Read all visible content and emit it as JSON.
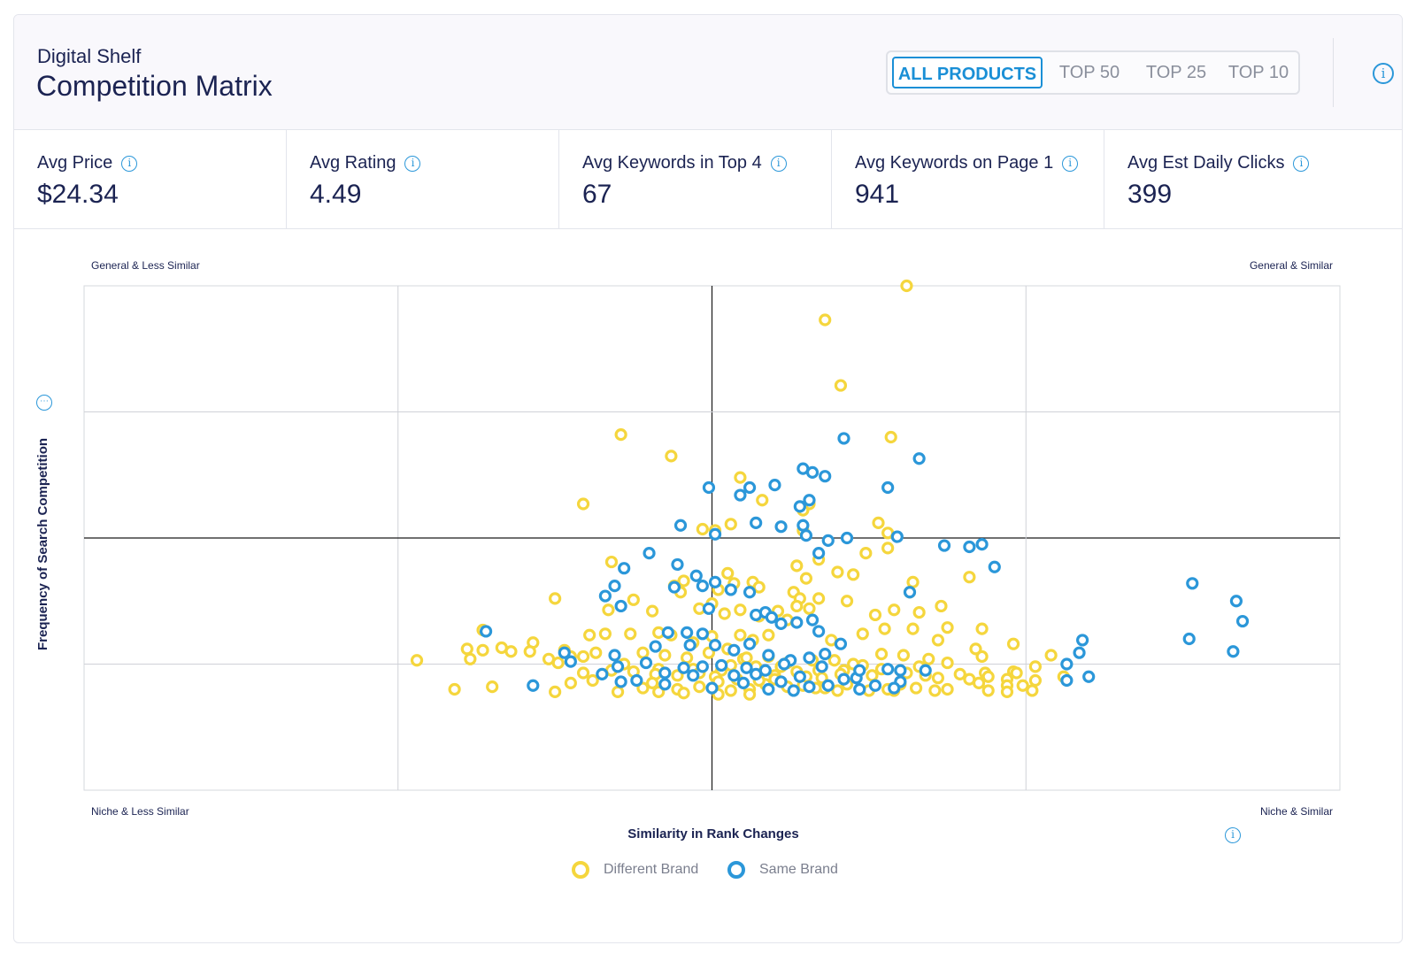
{
  "header": {
    "subtitle": "Digital Shelf",
    "title": "Competition Matrix",
    "tabs": [
      {
        "label": "ALL PRODUCTS",
        "active": true
      },
      {
        "label": "TOP 50",
        "active": false
      },
      {
        "label": "TOP 25",
        "active": false
      },
      {
        "label": "TOP 10",
        "active": false
      }
    ]
  },
  "stats": [
    {
      "label": "Avg Price",
      "value": "$24.34"
    },
    {
      "label": "Avg Rating",
      "value": "4.49"
    },
    {
      "label": "Avg Keywords in Top 4",
      "value": "67"
    },
    {
      "label": "Avg Keywords on Page 1",
      "value": "941"
    },
    {
      "label": "Avg Est Daily Clicks",
      "value": "399"
    }
  ],
  "corners": {
    "top_left": "General & Less Similar",
    "top_right": "General & Similar",
    "bottom_left": "Niche & Less Similar",
    "bottom_right": "Niche & Similar"
  },
  "colors": {
    "different_brand": "#f5d63d",
    "same_brand": "#2b97d9",
    "accent": "#1a8fd6"
  },
  "chart_data": {
    "type": "scatter",
    "xlabel": "Similarity in Rank Changes",
    "ylabel": "Frequency of Search Competition",
    "xlim": [
      0,
      4
    ],
    "ylim": [
      0,
      4
    ],
    "grid": true,
    "legend_position": "bottom-center",
    "series": [
      {
        "name": "Different Brand",
        "color": "#f5d63d",
        "points": [
          [
            2.62,
            4.0
          ],
          [
            2.36,
            3.73
          ],
          [
            2.41,
            3.21
          ],
          [
            1.71,
            2.82
          ],
          [
            2.57,
            2.8
          ],
          [
            1.87,
            2.65
          ],
          [
            2.09,
            2.48
          ],
          [
            1.59,
            2.27
          ],
          [
            2.16,
            2.3
          ],
          [
            2.31,
            2.27
          ],
          [
            2.29,
            2.22
          ],
          [
            2.06,
            2.11
          ],
          [
            1.97,
            2.07
          ],
          [
            2.01,
            2.06
          ],
          [
            2.53,
            2.12
          ],
          [
            2.56,
            2.04
          ],
          [
            2.29,
            2.06
          ],
          [
            1.68,
            1.81
          ],
          [
            2.27,
            1.78
          ],
          [
            2.56,
            1.92
          ],
          [
            2.64,
            1.65
          ],
          [
            2.13,
            1.65
          ],
          [
            2.3,
            1.68
          ],
          [
            2.05,
            1.72
          ],
          [
            1.91,
            1.66
          ],
          [
            2.4,
            1.73
          ],
          [
            2.45,
            1.71
          ],
          [
            2.34,
            1.83
          ],
          [
            2.49,
            1.88
          ],
          [
            2.07,
            1.64
          ],
          [
            2.02,
            1.59
          ],
          [
            1.88,
            1.62
          ],
          [
            1.9,
            1.57
          ],
          [
            2.15,
            1.61
          ],
          [
            2.26,
            1.57
          ],
          [
            2.28,
            1.52
          ],
          [
            2.63,
            1.57
          ],
          [
            2.82,
            1.69
          ],
          [
            1.5,
            1.52
          ],
          [
            1.67,
            1.43
          ],
          [
            1.75,
            1.51
          ],
          [
            1.81,
            1.42
          ],
          [
            1.96,
            1.44
          ],
          [
            2.0,
            1.48
          ],
          [
            2.04,
            1.4
          ],
          [
            2.09,
            1.43
          ],
          [
            2.15,
            1.38
          ],
          [
            2.21,
            1.42
          ],
          [
            2.27,
            1.46
          ],
          [
            2.31,
            1.44
          ],
          [
            2.34,
            1.52
          ],
          [
            2.43,
            1.5
          ],
          [
            2.52,
            1.39
          ],
          [
            2.58,
            1.43
          ],
          [
            2.66,
            1.41
          ],
          [
            2.73,
            1.46
          ],
          [
            2.86,
            1.28
          ],
          [
            1.27,
            1.27
          ],
          [
            1.43,
            1.17
          ],
          [
            1.53,
            1.11
          ],
          [
            1.61,
            1.23
          ],
          [
            1.66,
            1.24
          ],
          [
            1.74,
            1.24
          ],
          [
            1.83,
            1.25
          ],
          [
            1.87,
            1.23
          ],
          [
            1.94,
            1.17
          ],
          [
            2.0,
            1.22
          ],
          [
            2.09,
            1.23
          ],
          [
            2.13,
            1.19
          ],
          [
            2.18,
            1.23
          ],
          [
            2.24,
            1.35
          ],
          [
            2.38,
            1.19
          ],
          [
            2.48,
            1.24
          ],
          [
            2.55,
            1.28
          ],
          [
            2.64,
            1.28
          ],
          [
            2.72,
            1.19
          ],
          [
            2.75,
            1.29
          ],
          [
            2.96,
            1.16
          ],
          [
            1.27,
            1.11
          ],
          [
            1.22,
            1.12
          ],
          [
            1.42,
            1.1
          ],
          [
            1.63,
            1.09
          ],
          [
            1.78,
            1.09
          ],
          [
            1.85,
            1.07
          ],
          [
            1.92,
            1.05
          ],
          [
            1.99,
            1.09
          ],
          [
            2.05,
            1.12
          ],
          [
            2.1,
            1.04
          ],
          [
            2.18,
            1.06
          ],
          [
            2.24,
            1.01
          ],
          [
            2.32,
            1.03
          ],
          [
            2.39,
            1.03
          ],
          [
            2.45,
            1.0
          ],
          [
            2.54,
            1.08
          ],
          [
            2.61,
            1.07
          ],
          [
            2.69,
            1.04
          ],
          [
            2.75,
            1.01
          ],
          [
            2.84,
            1.12
          ],
          [
            2.86,
            1.06
          ],
          [
            1.23,
            1.04
          ],
          [
            1.36,
            1.1
          ],
          [
            1.48,
            1.04
          ],
          [
            1.55,
            1.06
          ],
          [
            1.59,
            1.06
          ],
          [
            1.72,
            1.0
          ],
          [
            1.83,
            0.96
          ],
          [
            1.94,
            0.96
          ],
          [
            2.06,
            0.99
          ],
          [
            2.11,
            1.05
          ],
          [
            2.22,
            0.98
          ],
          [
            2.27,
            0.94
          ],
          [
            2.34,
            0.95
          ],
          [
            2.48,
            0.99
          ],
          [
            2.6,
            0.95
          ],
          [
            2.68,
            0.91
          ],
          [
            2.87,
            0.93
          ],
          [
            2.94,
            0.88
          ],
          [
            3.08,
            1.07
          ],
          [
            1.51,
            1.01
          ],
          [
            1.59,
            0.93
          ],
          [
            1.75,
            0.94
          ],
          [
            1.89,
            0.91
          ],
          [
            1.96,
            0.93
          ],
          [
            2.03,
            0.95
          ],
          [
            2.14,
            0.98
          ],
          [
            2.2,
            0.91
          ],
          [
            2.35,
            0.89
          ],
          [
            2.42,
            0.95
          ],
          [
            2.54,
            0.96
          ],
          [
            2.62,
            0.93
          ],
          [
            2.72,
            0.89
          ],
          [
            2.79,
            0.92
          ],
          [
            2.88,
            0.9
          ],
          [
            2.96,
            0.94
          ],
          [
            3.03,
            0.98
          ],
          [
            3.12,
            0.9
          ],
          [
            1.82,
            0.92
          ],
          [
            1.68,
            0.95
          ],
          [
            2.01,
            0.9
          ],
          [
            2.08,
            0.88
          ],
          [
            2.2,
            0.88
          ],
          [
            2.3,
            0.9
          ],
          [
            2.41,
            0.92
          ],
          [
            2.51,
            0.91
          ],
          [
            2.66,
            0.98
          ],
          [
            2.82,
            0.88
          ],
          [
            2.97,
            0.93
          ],
          [
            1.33,
            1.13
          ],
          [
            1.06,
            1.03
          ],
          [
            1.3,
            0.82
          ],
          [
            1.18,
            0.8
          ],
          [
            1.62,
            0.87
          ],
          [
            1.78,
            0.81
          ],
          [
            1.81,
            0.85
          ],
          [
            1.89,
            0.8
          ],
          [
            1.96,
            0.82
          ],
          [
            2.02,
            0.86
          ],
          [
            2.06,
            0.79
          ],
          [
            2.12,
            0.8
          ],
          [
            2.17,
            0.84
          ],
          [
            2.24,
            0.82
          ],
          [
            2.29,
            0.83
          ],
          [
            2.36,
            0.81
          ],
          [
            2.43,
            0.84
          ],
          [
            2.5,
            0.79
          ],
          [
            2.58,
            0.79
          ],
          [
            2.65,
            0.81
          ],
          [
            2.71,
            0.79
          ],
          [
            2.85,
            0.85
          ],
          [
            2.94,
            0.83
          ],
          [
            2.94,
            0.78
          ],
          [
            2.99,
            0.83
          ],
          [
            3.02,
            0.79
          ],
          [
            1.7,
            0.78
          ],
          [
            1.83,
            0.78
          ],
          [
            1.91,
            0.77
          ],
          [
            2.02,
            0.76
          ],
          [
            2.12,
            0.76
          ],
          [
            2.4,
            0.79
          ],
          [
            2.75,
            0.8
          ],
          [
            3.03,
            0.87
          ],
          [
            1.55,
            0.85
          ],
          [
            2.33,
            0.81
          ],
          [
            2.56,
            0.8
          ],
          [
            1.5,
            0.78
          ],
          [
            2.15,
            0.87
          ],
          [
            2.88,
            0.79
          ],
          [
            2.6,
            0.84
          ]
        ]
      },
      {
        "name": "Same Brand",
        "color": "#2b97d9",
        "points": [
          [
            2.42,
            2.79
          ],
          [
            2.66,
            2.63
          ],
          [
            2.29,
            2.55
          ],
          [
            2.32,
            2.52
          ],
          [
            2.36,
            2.49
          ],
          [
            1.99,
            2.4
          ],
          [
            2.12,
            2.4
          ],
          [
            2.2,
            2.42
          ],
          [
            2.31,
            2.3
          ],
          [
            2.56,
            2.4
          ],
          [
            2.28,
            2.25
          ],
          [
            1.9,
            2.1
          ],
          [
            2.01,
            2.03
          ],
          [
            2.14,
            2.12
          ],
          [
            2.22,
            2.09
          ],
          [
            2.29,
            2.1
          ],
          [
            2.3,
            2.02
          ],
          [
            2.37,
            1.98
          ],
          [
            2.43,
            2.0
          ],
          [
            2.74,
            1.94
          ],
          [
            2.82,
            1.93
          ],
          [
            2.86,
            1.95
          ],
          [
            1.8,
            1.88
          ],
          [
            1.89,
            1.79
          ],
          [
            1.95,
            1.7
          ],
          [
            1.72,
            1.76
          ],
          [
            1.88,
            1.61
          ],
          [
            1.97,
            1.62
          ],
          [
            2.01,
            1.65
          ],
          [
            2.06,
            1.59
          ],
          [
            2.12,
            1.57
          ],
          [
            1.66,
            1.54
          ],
          [
            1.71,
            1.46
          ],
          [
            1.99,
            1.44
          ],
          [
            2.14,
            1.39
          ],
          [
            2.32,
            1.35
          ],
          [
            2.63,
            1.57
          ],
          [
            2.34,
            1.26
          ],
          [
            2.22,
            1.32
          ],
          [
            2.17,
            1.41
          ],
          [
            1.86,
            1.25
          ],
          [
            1.92,
            1.25
          ],
          [
            1.97,
            1.24
          ],
          [
            2.19,
            1.37
          ],
          [
            2.27,
            1.33
          ],
          [
            1.28,
            1.26
          ],
          [
            1.53,
            1.09
          ],
          [
            1.69,
            1.07
          ],
          [
            1.82,
            1.14
          ],
          [
            1.93,
            1.15
          ],
          [
            2.01,
            1.15
          ],
          [
            2.07,
            1.11
          ],
          [
            2.12,
            1.16
          ],
          [
            2.18,
            1.07
          ],
          [
            2.25,
            1.03
          ],
          [
            2.31,
            1.05
          ],
          [
            2.36,
            1.08
          ],
          [
            2.41,
            1.16
          ],
          [
            2.46,
            0.89
          ],
          [
            2.56,
            0.96
          ],
          [
            2.6,
            0.86
          ],
          [
            3.18,
            1.19
          ],
          [
            3.13,
            1.0
          ],
          [
            3.17,
            1.09
          ],
          [
            1.55,
            1.02
          ],
          [
            1.7,
            0.98
          ],
          [
            1.79,
            1.01
          ],
          [
            1.85,
            0.93
          ],
          [
            1.91,
            0.97
          ],
          [
            1.97,
            0.98
          ],
          [
            2.03,
            0.99
          ],
          [
            2.11,
            0.97
          ],
          [
            2.17,
            0.95
          ],
          [
            2.23,
            1.0
          ],
          [
            2.35,
            0.98
          ],
          [
            2.47,
            0.95
          ],
          [
            2.6,
            0.95
          ],
          [
            2.68,
            0.95
          ],
          [
            3.2,
            0.9
          ],
          [
            1.71,
            0.86
          ],
          [
            1.76,
            0.87
          ],
          [
            1.94,
            0.91
          ],
          [
            2.07,
            0.91
          ],
          [
            2.14,
            0.92
          ],
          [
            2.28,
            0.9
          ],
          [
            2.42,
            0.88
          ],
          [
            1.43,
            0.83
          ],
          [
            2.22,
            0.86
          ],
          [
            2.31,
            0.82
          ],
          [
            1.65,
            0.92
          ],
          [
            1.85,
            0.84
          ],
          [
            2.0,
            0.81
          ],
          [
            2.1,
            0.85
          ],
          [
            2.18,
            0.8
          ],
          [
            2.26,
            0.79
          ],
          [
            2.37,
            0.83
          ],
          [
            2.47,
            0.8
          ],
          [
            2.52,
            0.83
          ],
          [
            2.58,
            0.81
          ],
          [
            3.13,
            0.87
          ],
          [
            3.53,
            1.64
          ],
          [
            3.67,
            1.5
          ],
          [
            3.69,
            1.34
          ],
          [
            3.52,
            1.2
          ],
          [
            3.66,
            1.1
          ],
          [
            1.69,
            1.62
          ],
          [
            2.34,
            1.88
          ],
          [
            2.09,
            2.34
          ],
          [
            2.59,
            2.01
          ],
          [
            2.9,
            1.77
          ]
        ]
      }
    ]
  },
  "legend": [
    {
      "label": "Different Brand",
      "color": "#f5d63d"
    },
    {
      "label": "Same Brand",
      "color": "#2b97d9"
    }
  ]
}
